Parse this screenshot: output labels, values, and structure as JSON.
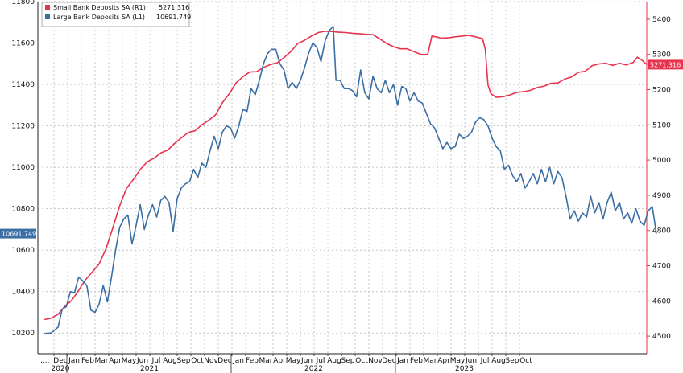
{
  "chart_data": {
    "type": "line",
    "dual_axis": true,
    "grid": true,
    "legend_position": "top-left",
    "colors": {
      "small": "#e8334f",
      "large": "#3a6ea5",
      "frame": "#222222",
      "grid": "#bbbbbb"
    },
    "x_axis": {
      "months": [
        "Dec",
        "Jan",
        "Feb",
        "Mar",
        "Apr",
        "May",
        "Jun",
        "Jul",
        "Aug",
        "Sep",
        "Oct",
        "Nov",
        "Dec",
        "Jan",
        "Feb",
        "Mar",
        "Apr",
        "May",
        "Jun",
        "Jul",
        "Aug",
        "Sep",
        "Oct",
        "Nov",
        "Dec",
        "Jan",
        "Feb",
        "Mar",
        "Apr",
        "May",
        "Jun",
        "Jul",
        "Aug",
        "Sep",
        "Oct"
      ],
      "years": [
        {
          "label": "2020",
          "month_index": 0
        },
        {
          "label": "2021",
          "month_index": 6.5
        },
        {
          "label": "2022",
          "month_index": 18.5
        },
        {
          "label": "2023",
          "month_index": 29.5
        }
      ],
      "leading_mark": "...."
    },
    "left_axis": {
      "min": 10100,
      "max": 11800,
      "ticks": [
        10200,
        10400,
        10600,
        10800,
        11000,
        11200,
        11400,
        11600,
        11800
      ]
    },
    "right_axis": {
      "min": 4450,
      "max": 5450,
      "ticks": [
        4500,
        4600,
        4700,
        4800,
        4900,
        5000,
        5100,
        5200,
        5300,
        5400
      ]
    },
    "series": [
      {
        "name": "Small Bank Deposits SA (R1)",
        "axis": "right",
        "last_value": "5271.316",
        "points": [
          [
            -0.7,
            4547
          ],
          [
            -0.2,
            4551
          ],
          [
            0.3,
            4562
          ],
          [
            0.8,
            4585
          ],
          [
            1.3,
            4602
          ],
          [
            1.8,
            4630
          ],
          [
            2.3,
            4660
          ],
          [
            2.8,
            4682
          ],
          [
            3.3,
            4705
          ],
          [
            3.8,
            4748
          ],
          [
            4.3,
            4808
          ],
          [
            4.8,
            4870
          ],
          [
            5.3,
            4920
          ],
          [
            5.8,
            4945
          ],
          [
            6.3,
            4973
          ],
          [
            6.8,
            4995
          ],
          [
            7.3,
            5005
          ],
          [
            7.8,
            5020
          ],
          [
            8.3,
            5028
          ],
          [
            8.8,
            5047
          ],
          [
            9.3,
            5063
          ],
          [
            9.8,
            5078
          ],
          [
            10.3,
            5083
          ],
          [
            10.8,
            5100
          ],
          [
            11.3,
            5113
          ],
          [
            11.8,
            5128
          ],
          [
            12.3,
            5163
          ],
          [
            12.8,
            5188
          ],
          [
            13.3,
            5219
          ],
          [
            13.8,
            5237
          ],
          [
            14.3,
            5250
          ],
          [
            14.8,
            5251
          ],
          [
            15.3,
            5263
          ],
          [
            15.8,
            5271
          ],
          [
            16.3,
            5276
          ],
          [
            16.8,
            5291
          ],
          [
            17.3,
            5308
          ],
          [
            17.8,
            5331
          ],
          [
            18.3,
            5340
          ],
          [
            18.8,
            5352
          ],
          [
            19.3,
            5362
          ],
          [
            19.8,
            5366
          ],
          [
            20.3,
            5365
          ],
          [
            20.8,
            5363
          ],
          [
            21.3,
            5362
          ],
          [
            21.8,
            5360
          ],
          [
            22.3,
            5359
          ],
          [
            22.8,
            5357
          ],
          [
            23.3,
            5356
          ],
          [
            23.8,
            5344
          ],
          [
            24.3,
            5331
          ],
          [
            24.8,
            5322
          ],
          [
            25.3,
            5316
          ],
          [
            25.8,
            5316
          ],
          [
            26.3,
            5308
          ],
          [
            26.8,
            5300
          ],
          [
            27.3,
            5300
          ],
          [
            27.6,
            5352
          ],
          [
            27.9,
            5350
          ],
          [
            28.3,
            5346
          ],
          [
            28.8,
            5347
          ],
          [
            29.3,
            5350
          ],
          [
            29.8,
            5352
          ],
          [
            30.3,
            5354
          ],
          [
            30.8,
            5350
          ],
          [
            31.3,
            5345
          ],
          [
            31.5,
            5315
          ],
          [
            31.7,
            5213
          ],
          [
            31.9,
            5189
          ],
          [
            32.3,
            5178
          ],
          [
            32.8,
            5180
          ],
          [
            33.3,
            5185
          ],
          [
            33.8,
            5192
          ],
          [
            34.3,
            5194
          ],
          [
            34.8,
            5198
          ],
          [
            35.3,
            5206
          ],
          [
            35.8,
            5210
          ],
          [
            36.3,
            5218
          ],
          [
            36.8,
            5219
          ],
          [
            37.3,
            5230
          ],
          [
            37.8,
            5236
          ],
          [
            38.3,
            5249
          ],
          [
            38.8,
            5252
          ],
          [
            39.3,
            5268
          ],
          [
            39.8,
            5273
          ],
          [
            40.3,
            5275
          ],
          [
            40.8,
            5269
          ],
          [
            41.3,
            5275
          ],
          [
            41.8,
            5270
          ],
          [
            42.3,
            5277
          ],
          [
            42.6,
            5292
          ],
          [
            42.9,
            5285
          ],
          [
            43.3,
            5271
          ]
        ]
      },
      {
        "name": "Large Bank Deposits SA (L1)",
        "axis": "left",
        "last_value": "10691.749",
        "points": [
          [
            -0.7,
            10198
          ],
          [
            -0.2,
            10200
          ],
          [
            0.3,
            10228
          ],
          [
            0.6,
            10315
          ],
          [
            0.9,
            10327
          ],
          [
            1.2,
            10400
          ],
          [
            1.5,
            10395
          ],
          [
            1.8,
            10470
          ],
          [
            2.1,
            10452
          ],
          [
            2.4,
            10430
          ],
          [
            2.7,
            10310
          ],
          [
            3.0,
            10300
          ],
          [
            3.3,
            10340
          ],
          [
            3.6,
            10430
          ],
          [
            3.9,
            10350
          ],
          [
            4.2,
            10470
          ],
          [
            4.5,
            10600
          ],
          [
            4.8,
            10710
          ],
          [
            5.1,
            10750
          ],
          [
            5.4,
            10770
          ],
          [
            5.7,
            10630
          ],
          [
            6.0,
            10720
          ],
          [
            6.3,
            10820
          ],
          [
            6.6,
            10700
          ],
          [
            6.9,
            10770
          ],
          [
            7.2,
            10820
          ],
          [
            7.5,
            10760
          ],
          [
            7.8,
            10840
          ],
          [
            8.1,
            10860
          ],
          [
            8.4,
            10830
          ],
          [
            8.7,
            10690
          ],
          [
            9.0,
            10850
          ],
          [
            9.3,
            10900
          ],
          [
            9.6,
            10920
          ],
          [
            9.9,
            10930
          ],
          [
            10.2,
            10990
          ],
          [
            10.5,
            10950
          ],
          [
            10.8,
            11020
          ],
          [
            11.1,
            11000
          ],
          [
            11.4,
            11080
          ],
          [
            11.7,
            11150
          ],
          [
            12.0,
            11090
          ],
          [
            12.3,
            11170
          ],
          [
            12.6,
            11200
          ],
          [
            12.9,
            11190
          ],
          [
            13.2,
            11140
          ],
          [
            13.5,
            11200
          ],
          [
            13.8,
            11280
          ],
          [
            14.1,
            11270
          ],
          [
            14.4,
            11380
          ],
          [
            14.7,
            11350
          ],
          [
            15.0,
            11420
          ],
          [
            15.3,
            11500
          ],
          [
            15.6,
            11550
          ],
          [
            15.9,
            11570
          ],
          [
            16.2,
            11570
          ],
          [
            16.5,
            11500
          ],
          [
            16.8,
            11470
          ],
          [
            17.1,
            11380
          ],
          [
            17.4,
            11410
          ],
          [
            17.7,
            11380
          ],
          [
            18.0,
            11420
          ],
          [
            18.3,
            11480
          ],
          [
            18.6,
            11550
          ],
          [
            18.9,
            11600
          ],
          [
            19.2,
            11580
          ],
          [
            19.5,
            11510
          ],
          [
            19.8,
            11610
          ],
          [
            20.1,
            11660
          ],
          [
            20.4,
            11680
          ],
          [
            20.6,
            11420
          ],
          [
            20.9,
            11420
          ],
          [
            21.2,
            11380
          ],
          [
            21.5,
            11380
          ],
          [
            21.8,
            11370
          ],
          [
            22.1,
            11340
          ],
          [
            22.4,
            11470
          ],
          [
            22.7,
            11360
          ],
          [
            23.0,
            11330
          ],
          [
            23.3,
            11440
          ],
          [
            23.6,
            11380
          ],
          [
            23.9,
            11360
          ],
          [
            24.2,
            11420
          ],
          [
            24.5,
            11360
          ],
          [
            24.8,
            11400
          ],
          [
            25.1,
            11300
          ],
          [
            25.4,
            11390
          ],
          [
            25.7,
            11380
          ],
          [
            26.0,
            11320
          ],
          [
            26.3,
            11360
          ],
          [
            26.6,
            11320
          ],
          [
            26.9,
            11310
          ],
          [
            27.2,
            11260
          ],
          [
            27.5,
            11210
          ],
          [
            27.8,
            11190
          ],
          [
            28.1,
            11140
          ],
          [
            28.4,
            11090
          ],
          [
            28.7,
            11120
          ],
          [
            29.0,
            11090
          ],
          [
            29.3,
            11100
          ],
          [
            29.6,
            11160
          ],
          [
            29.9,
            11140
          ],
          [
            30.2,
            11150
          ],
          [
            30.5,
            11170
          ],
          [
            30.8,
            11220
          ],
          [
            31.1,
            11240
          ],
          [
            31.4,
            11230
          ],
          [
            31.7,
            11200
          ],
          [
            32.0,
            11140
          ],
          [
            32.3,
            11100
          ],
          [
            32.6,
            11080
          ],
          [
            32.9,
            10990
          ],
          [
            33.2,
            11010
          ],
          [
            33.5,
            10960
          ],
          [
            33.8,
            10930
          ],
          [
            34.1,
            10970
          ],
          [
            34.4,
            10900
          ],
          [
            34.7,
            10930
          ],
          [
            35.0,
            10970
          ],
          [
            35.3,
            10920
          ],
          [
            35.6,
            10990
          ],
          [
            35.9,
            10930
          ],
          [
            36.2,
            11000
          ],
          [
            36.5,
            10920
          ],
          [
            36.8,
            10980
          ],
          [
            37.1,
            10950
          ],
          [
            37.4,
            10860
          ],
          [
            37.7,
            10750
          ],
          [
            38.0,
            10790
          ],
          [
            38.3,
            10740
          ],
          [
            38.6,
            10780
          ],
          [
            38.9,
            10760
          ],
          [
            39.2,
            10860
          ],
          [
            39.5,
            10780
          ],
          [
            39.8,
            10830
          ],
          [
            40.1,
            10750
          ],
          [
            40.4,
            10830
          ],
          [
            40.7,
            10880
          ],
          [
            41.0,
            10790
          ],
          [
            41.3,
            10830
          ],
          [
            41.6,
            10750
          ],
          [
            41.9,
            10780
          ],
          [
            42.2,
            10730
          ],
          [
            42.5,
            10800
          ],
          [
            42.8,
            10740
          ],
          [
            43.1,
            10720
          ],
          [
            43.4,
            10790
          ],
          [
            43.7,
            10810
          ],
          [
            44.0,
            10680
          ]
        ]
      }
    ]
  }
}
